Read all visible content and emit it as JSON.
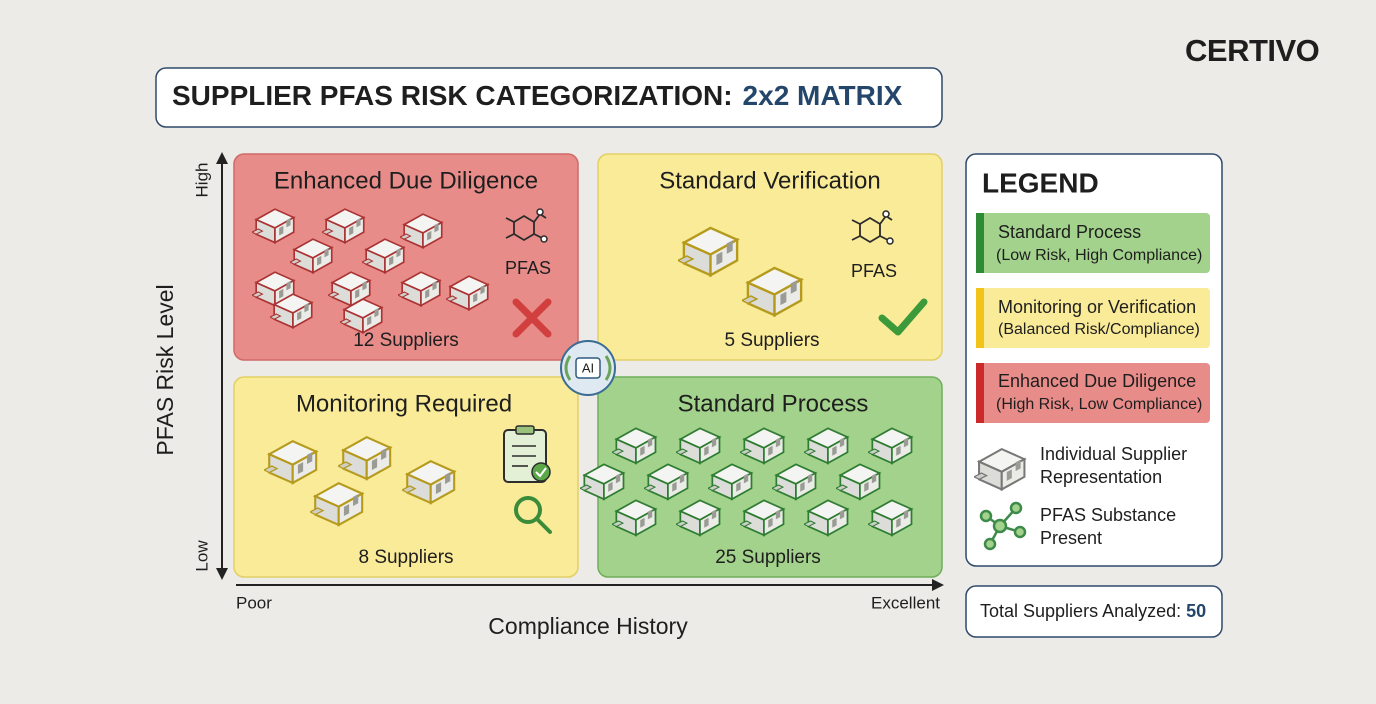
{
  "brand": "CERTIVO",
  "header": {
    "title": "SUPPLIER PFAS RISK CATEGORIZATION:",
    "title_accent": "2x2 MATRIX"
  },
  "axes": {
    "y": {
      "label": "PFAS Risk Level",
      "high": "High",
      "low": "Low"
    },
    "x": {
      "label": "Compliance History",
      "low": "Poor",
      "high": "Excellent"
    }
  },
  "quadrants": [
    {
      "title": "Enhanced Due Diligence",
      "count": "12 Suppliers",
      "icon_label": "PFAS"
    },
    {
      "title": "Standard Verification",
      "count": "5 Suppliers",
      "icon_label": "PFAS"
    },
    {
      "title": "Monitoring Required",
      "count": "8 Suppliers"
    },
    {
      "title": "Standard Process",
      "count": "25 Suppliers"
    }
  ],
  "center": "AI",
  "legend": {
    "title": "LEGEND",
    "items": [
      {
        "title": "Standard Process",
        "subtitle": "(Low Risk, High Compliance)"
      },
      {
        "title": "Monitoring or Verification",
        "subtitle": "(Balanced Risk/Compliance)"
      },
      {
        "title": "Enhanced Due Diligence",
        "subtitle": "(High Risk, Low Compliance)"
      }
    ],
    "symbols": [
      {
        "line1": "Individual Supplier",
        "line2": "Representation"
      },
      {
        "line1": "PFAS Substance",
        "line2": "Present"
      }
    ]
  },
  "total": {
    "label": "Total Suppliers Analyzed:",
    "value": "50"
  }
}
